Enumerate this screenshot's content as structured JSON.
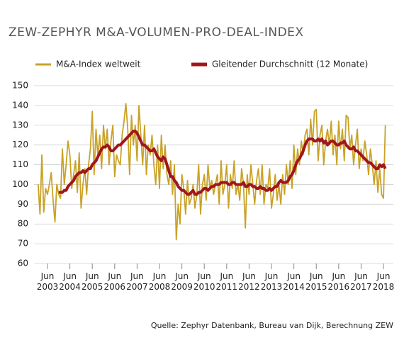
{
  "chart_data": {
    "type": "line",
    "title": "ZEW-ZEPHYR M&A-VOLUMEN-PRO-DEAL-INDEX",
    "source": "Quelle: Zephyr Datenbank, Bureau van Dijk, Berechnung ZEW",
    "categories": [
      null,
      null,
      null,
      null,
      null,
      "Jun\n2003",
      null,
      null,
      null,
      null,
      null,
      null,
      null,
      null,
      null,
      null,
      null,
      "Jun\n2004",
      null,
      null,
      null,
      null,
      null,
      null,
      null,
      null,
      null,
      null,
      null,
      "Jun\n2005",
      null,
      null,
      null,
      null,
      null,
      null,
      null,
      null,
      null,
      null,
      null,
      "Jun\n2006",
      null,
      null,
      null,
      null,
      null,
      null,
      null,
      null,
      null,
      null,
      null,
      "Jun\n2007",
      null,
      null,
      null,
      null,
      null,
      null,
      null,
      null,
      null,
      null,
      null,
      "Jun\n2008",
      null,
      null,
      null,
      null,
      null,
      null,
      null,
      null,
      null,
      null,
      null,
      "Jun\n2009",
      null,
      null,
      null,
      null,
      null,
      null,
      null,
      null,
      null,
      null,
      null,
      "Jun\n2010",
      null,
      null,
      null,
      null,
      null,
      null,
      null,
      null,
      null,
      null,
      null,
      "Jun\n2011",
      null,
      null,
      null,
      null,
      null,
      null,
      null,
      null,
      null,
      null,
      null,
      "Jun\n2012",
      null,
      null,
      null,
      null,
      null,
      null,
      null,
      null,
      null,
      null,
      null,
      "Jun\n2013",
      null,
      null,
      null,
      null,
      null,
      null,
      null,
      null,
      null,
      null,
      null,
      "Jun\n2014",
      null,
      null,
      null,
      null,
      null,
      null,
      null,
      null,
      null,
      null,
      null,
      "Jun\n2015",
      null,
      null,
      null,
      null,
      null,
      null,
      null,
      null,
      null,
      null,
      null,
      "Jun\n2016",
      null,
      null,
      null,
      null,
      null,
      null,
      null,
      null,
      null,
      null,
      null,
      "Jun\n2017",
      null,
      null,
      null,
      null,
      null,
      null,
      null,
      null,
      null,
      null,
      null,
      "Jun\n2018",
      null
    ],
    "series": [
      {
        "name": "M&A-Index weltweit",
        "color": "#c9a227",
        "values": [
          100,
          85,
          115,
          86,
          98,
          95,
          100,
          106,
          92,
          81,
          100,
          95,
          93,
          118,
          100,
          110,
          122,
          115,
          98,
          105,
          112,
          96,
          116,
          88,
          100,
          108,
          95,
          110,
          118,
          137,
          105,
          128,
          114,
          125,
          108,
          130,
          118,
          128,
          110,
          122,
          130,
          104,
          115,
          112,
          110,
          125,
          132,
          141,
          128,
          105,
          135,
          120,
          130,
          112,
          140,
          125,
          110,
          130,
          105,
          120,
          115,
          125,
          110,
          100,
          120,
          98,
          125,
          108,
          120,
          105,
          100,
          112,
          95,
          110,
          72,
          90,
          80,
          105,
          98,
          85,
          102,
          90,
          93,
          100,
          88,
          95,
          110,
          85,
          100,
          105,
          92,
          110,
          98,
          102,
          95,
          100,
          105,
          90,
          112,
          95,
          100,
          110,
          88,
          105,
          98,
          112,
          95,
          100,
          92,
          108,
          100,
          78,
          105,
          95,
          110,
          100,
          90,
          102,
          108,
          95,
          110,
          90,
          100,
          98,
          108,
          88,
          95,
          105,
          92,
          100,
          90,
          105,
          95,
          110,
          100,
          112,
          98,
          120,
          105,
          118,
          110,
          122,
          115,
          125,
          128,
          115,
          133,
          120,
          137,
          138,
          112,
          125,
          130,
          110,
          122,
          128,
          120,
          132,
          115,
          125,
          110,
          132,
          118,
          128,
          112,
          135,
          134,
          118,
          125,
          110,
          120,
          128,
          108,
          118,
          112,
          122,
          115,
          105,
          118,
          110,
          100,
          112,
          96,
          108,
          95,
          93,
          130
        ]
      },
      {
        "name": "Gleitender Durchschnitt (12 Monate)",
        "color": "#a0161c",
        "values": [
          null,
          null,
          null,
          null,
          null,
          null,
          null,
          null,
          null,
          null,
          null,
          96,
          96,
          96,
          97,
          97,
          99,
          100,
          101,
          102,
          104,
          105,
          106,
          106,
          107,
          106,
          107,
          108,
          108,
          110,
          111,
          112,
          114,
          116,
          118,
          119,
          119,
          120,
          119,
          117,
          117,
          118,
          119,
          120,
          120,
          121,
          122,
          123,
          124,
          125,
          126,
          127,
          127,
          126,
          124,
          122,
          120,
          120,
          119,
          118,
          117,
          117,
          118,
          116,
          114,
          113,
          112,
          114,
          113,
          110,
          107,
          104,
          104,
          102,
          101,
          99,
          98,
          97,
          97,
          96,
          95,
          95,
          96,
          97,
          95,
          95,
          96,
          96,
          97,
          98,
          98,
          97,
          98,
          99,
          99,
          100,
          100,
          100,
          101,
          101,
          101,
          101,
          100,
          100,
          101,
          101,
          100,
          100,
          100,
          100,
          101,
          99,
          99,
          100,
          100,
          99,
          99,
          98,
          98,
          99,
          98,
          98,
          97,
          97,
          98,
          97,
          98,
          99,
          99,
          101,
          102,
          101,
          101,
          101,
          102,
          104,
          105,
          107,
          110,
          112,
          113,
          115,
          117,
          120,
          122,
          123,
          123,
          123,
          122,
          122,
          123,
          122,
          123,
          121,
          122,
          120,
          121,
          122,
          122,
          121,
          120,
          120,
          121,
          121,
          122,
          120,
          119,
          118,
          118,
          119,
          117,
          117,
          116,
          115,
          114,
          113,
          112,
          111,
          111,
          110,
          109,
          108,
          108,
          110,
          109,
          110,
          108
        ]
      }
    ],
    "ylim": [
      60,
      150
    ],
    "yticks": [
      60,
      70,
      80,
      90,
      100,
      110,
      120,
      130,
      140,
      150
    ],
    "grid": true
  }
}
